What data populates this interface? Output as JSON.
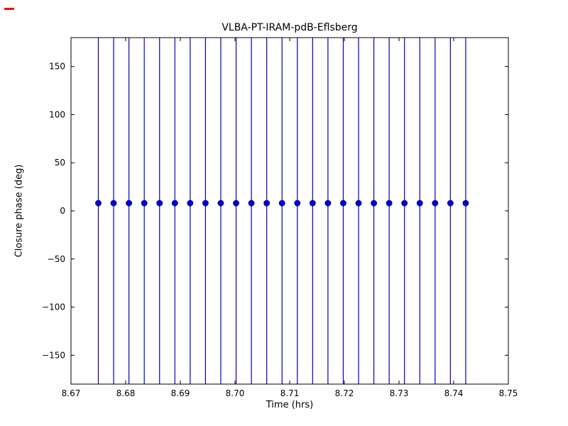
{
  "chart_data": {
    "type": "scatter",
    "title": "VLBA-PT-IRAM-pdB-Eflsberg",
    "xlabel": "Time (hrs)",
    "ylabel": "Closure phase (deg)",
    "xlim": [
      8.67,
      8.75
    ],
    "ylim": [
      -180,
      180
    ],
    "xticks": [
      8.67,
      8.68,
      8.69,
      8.7,
      8.71,
      8.72,
      8.73,
      8.74,
      8.75
    ],
    "xtick_labels": [
      "8.67",
      "8.68",
      "8.69",
      "8.70",
      "8.71",
      "8.72",
      "8.73",
      "8.74",
      "8.75"
    ],
    "yticks": [
      -150,
      -100,
      -50,
      0,
      50,
      100,
      150
    ],
    "ytick_labels": [
      "−150",
      "−100",
      "−50",
      "0",
      "50",
      "100",
      "150"
    ],
    "grid": false,
    "legend": null,
    "marker_color": "#0000cc",
    "errorbar_color": "#0000bb",
    "frame_color": "#000000",
    "series": [
      {
        "name": "closure phase with error bars",
        "x": [
          8.675,
          8.6778,
          8.6806,
          8.6834,
          8.6862,
          8.689,
          8.6918,
          8.6946,
          8.6974,
          8.7002,
          8.703,
          8.7058,
          8.7086,
          8.7114,
          8.7142,
          8.717,
          8.7198,
          8.7226,
          8.7254,
          8.7282,
          8.731,
          8.7338,
          8.7366,
          8.7394,
          8.7422
        ],
        "y": [
          8,
          8,
          8,
          8,
          8,
          8,
          8,
          8,
          8,
          8,
          8,
          8,
          8,
          8,
          8,
          8,
          8,
          8,
          8,
          8,
          8,
          8,
          8,
          8,
          8
        ],
        "yerr_spans_full_axis": true
      }
    ]
  }
}
